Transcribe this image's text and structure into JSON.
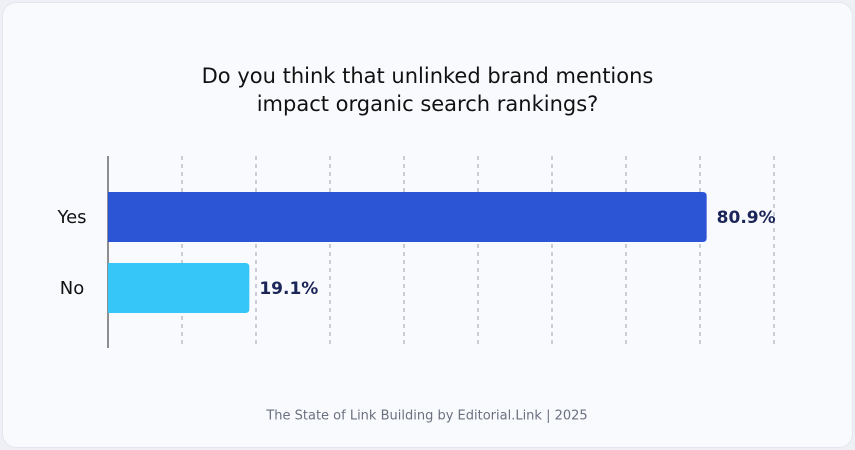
{
  "chart_data": {
    "type": "bar",
    "orientation": "horizontal",
    "title": "Do you think that unlinked brand mentions impact organic search rankings?",
    "categories": [
      "Yes",
      "No"
    ],
    "values": [
      80.9,
      19.1
    ],
    "value_labels": [
      "80.9%",
      "19.1%"
    ],
    "colors": [
      "#2c55d6",
      "#36c6f7"
    ],
    "xlim": [
      0,
      90
    ],
    "xticks": [
      0,
      10,
      20,
      30,
      40,
      50,
      60,
      70,
      80,
      90
    ],
    "grid": true,
    "source": "The State of Link Building by Editorial.Link | 2025"
  }
}
